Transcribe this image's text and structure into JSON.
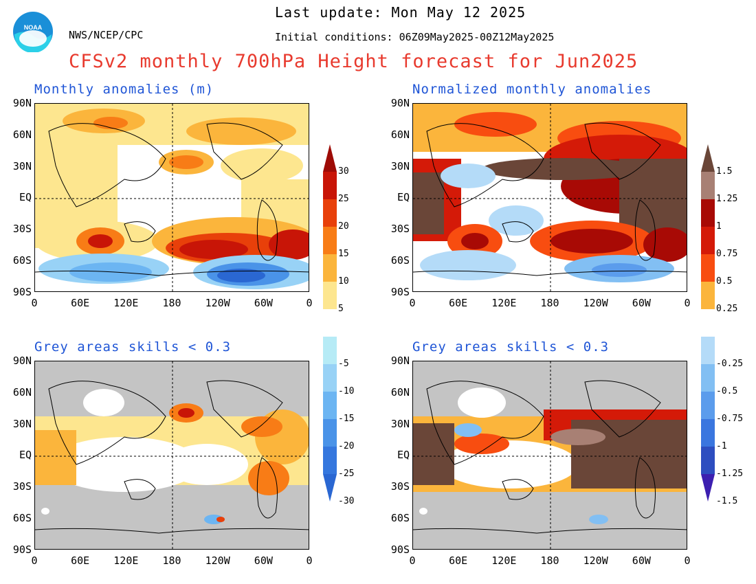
{
  "header": {
    "last_update": "Last update: Mon May 12 2025",
    "initial_conditions": "Initial conditions: 06Z09May2025-00Z12May2025",
    "org": "NWS/NCEP/CPC",
    "title": "CFSv2 monthly 700hPa Height forecast for Jun2025",
    "logo_text": "NOAA"
  },
  "panels": {
    "top_left_title": "Monthly anomalies (m)",
    "top_right_title": "Normalized monthly anomalies",
    "bottom_left_title": "Grey areas skills < 0.3",
    "bottom_right_title": "Grey areas skills < 0.3"
  },
  "axes": {
    "lat_labels": [
      "90N",
      "60N",
      "30N",
      "EQ",
      "30S",
      "60S",
      "90S"
    ],
    "lon_labels": [
      "0",
      "60E",
      "120E",
      "180",
      "120W",
      "60W",
      "0"
    ]
  },
  "colorbar_left": {
    "labels": [
      "30",
      "25",
      "20",
      "15",
      "10",
      "5",
      "-5",
      "-10",
      "-15",
      "-20",
      "-25",
      "-30"
    ]
  },
  "colorbar_right": {
    "labels": [
      "1.5",
      "1.25",
      "1",
      "0.75",
      "0.5",
      "0.25",
      "-0.25",
      "-0.5",
      "-0.75",
      "-1",
      "-1.25",
      "-1.5"
    ]
  },
  "colors": {
    "title": "#e83a2e",
    "panel_title": "#1f55d6",
    "skill_mask_grey": "#c4c4c4",
    "left_warm": [
      "#fde68f",
      "#fbb53c",
      "#f87c16",
      "#e8400a",
      "#c81507",
      "#9e0b06"
    ],
    "left_cool": [
      "#b6ebf6",
      "#98d2f6",
      "#6cb5f2",
      "#4a93e8",
      "#3577de",
      "#2a67d2"
    ],
    "right_warm": [
      "#fbb53c",
      "#f84d10",
      "#d41a08",
      "#a80a05",
      "#a88074",
      "#6a4638"
    ],
    "right_cool": [
      "#b4dbf8",
      "#82bff3",
      "#5b9cec",
      "#3a76df",
      "#2d4ec0",
      "#3c1fb0"
    ]
  }
}
